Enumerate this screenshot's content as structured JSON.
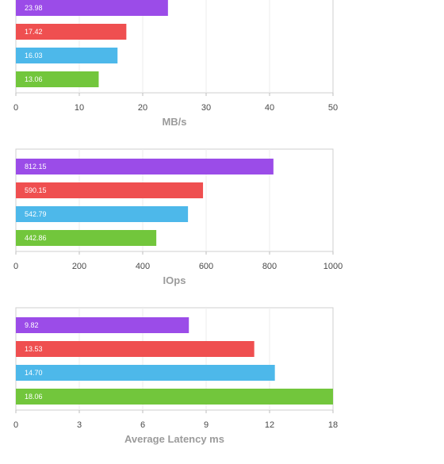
{
  "chart_data": [
    {
      "type": "bar",
      "orientation": "horizontal",
      "xlabel": "MB/s",
      "xlim": [
        0,
        50
      ],
      "xticks": [
        "0",
        "10",
        "20",
        "30",
        "40",
        "50"
      ],
      "grid": true,
      "values": [
        23.98,
        17.42,
        16.03,
        13.06
      ],
      "value_labels": [
        "23.98",
        "17.42",
        "16.03",
        "13.06"
      ],
      "colors": [
        "#9b4ce8",
        "#ef4f50",
        "#4db8ea",
        "#72c63c"
      ]
    },
    {
      "type": "bar",
      "orientation": "horizontal",
      "xlabel": "IOps",
      "xlim": [
        0,
        1000
      ],
      "xticks": [
        "0",
        "200",
        "400",
        "600",
        "800",
        "1000"
      ],
      "grid": true,
      "values": [
        812.15,
        590.15,
        542.79,
        442.86
      ],
      "value_labels": [
        "812.15",
        "590.15",
        "542.79",
        "442.86"
      ],
      "colors": [
        "#9b4ce8",
        "#ef4f50",
        "#4db8ea",
        "#72c63c"
      ]
    },
    {
      "type": "bar",
      "orientation": "horizontal",
      "xlabel": "Average Latency ms",
      "xlim": [
        0,
        18
      ],
      "xticks": [
        "0",
        "3",
        "6",
        "9",
        "12",
        "18"
      ],
      "grid": true,
      "values": [
        9.82,
        13.53,
        14.7,
        18.06
      ],
      "value_labels": [
        "9.82",
        "13.53",
        "14.70",
        "18.06"
      ],
      "colors": [
        "#9b4ce8",
        "#ef4f50",
        "#4db8ea",
        "#72c63c"
      ]
    }
  ]
}
